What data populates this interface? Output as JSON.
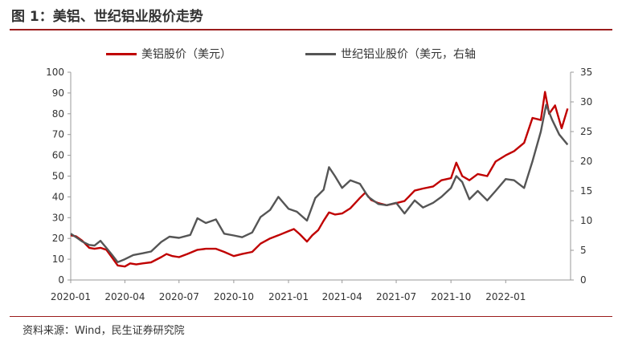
{
  "figure": {
    "title": "图 1：美铝、世纪铝业股价走势",
    "source": "资料来源：Wind，民生证券研究院"
  },
  "colors": {
    "accent": "#9b1c1c",
    "series_a": "#c00000",
    "series_b": "#555555"
  },
  "chart_data": {
    "type": "line",
    "title": "",
    "xlabel": "",
    "ylabel": "",
    "y2label": "",
    "ylim": [
      0,
      100
    ],
    "y2lim": [
      0,
      35
    ],
    "x_ticks": [
      "2020-01",
      "2020-04",
      "2020-07",
      "2020-10",
      "2021-01",
      "2021-04",
      "2021-07",
      "2021-10",
      "2022-01"
    ],
    "y_ticks": [
      0,
      10,
      20,
      30,
      40,
      50,
      60,
      70,
      80,
      90,
      100
    ],
    "y2_ticks": [
      0,
      5,
      10,
      15,
      20,
      25,
      30,
      35
    ],
    "x_range": [
      "2020-01-01",
      "2022-04-20"
    ],
    "grid": false,
    "legend_position": "top",
    "series": [
      {
        "name": "美铝股价（美元）",
        "axis": "left",
        "color": "#c00000",
        "points": [
          [
            "2020-01-01",
            21.5
          ],
          [
            "2020-01-10",
            21
          ],
          [
            "2020-01-20",
            19
          ],
          [
            "2020-02-01",
            15.5
          ],
          [
            "2020-02-10",
            15
          ],
          [
            "2020-02-20",
            15.5
          ],
          [
            "2020-03-01",
            14.5
          ],
          [
            "2020-03-10",
            11
          ],
          [
            "2020-03-20",
            7
          ],
          [
            "2020-04-01",
            6.5
          ],
          [
            "2020-04-10",
            8
          ],
          [
            "2020-04-20",
            7.5
          ],
          [
            "2020-05-01",
            8
          ],
          [
            "2020-05-15",
            8.5
          ],
          [
            "2020-06-01",
            11
          ],
          [
            "2020-06-10",
            12.5
          ],
          [
            "2020-06-20",
            11.5
          ],
          [
            "2020-07-01",
            11
          ],
          [
            "2020-07-15",
            12.5
          ],
          [
            "2020-08-01",
            14.5
          ],
          [
            "2020-08-15",
            15
          ],
          [
            "2020-09-01",
            15
          ],
          [
            "2020-09-15",
            13.5
          ],
          [
            "2020-10-01",
            11.5
          ],
          [
            "2020-10-15",
            12.5
          ],
          [
            "2020-11-01",
            13.5
          ],
          [
            "2020-11-15",
            17.5
          ],
          [
            "2020-12-01",
            20
          ],
          [
            "2020-12-15",
            21.5
          ],
          [
            "2021-01-01",
            23.5
          ],
          [
            "2021-01-10",
            24.5
          ],
          [
            "2021-01-20",
            22
          ],
          [
            "2021-02-01",
            18.5
          ],
          [
            "2021-02-10",
            21.5
          ],
          [
            "2021-02-20",
            24
          ],
          [
            "2021-03-01",
            28.5
          ],
          [
            "2021-03-10",
            32.5
          ],
          [
            "2021-03-20",
            31.5
          ],
          [
            "2021-04-01",
            32
          ],
          [
            "2021-04-15",
            34.5
          ],
          [
            "2021-05-01",
            39.5
          ],
          [
            "2021-05-10",
            42
          ],
          [
            "2021-05-20",
            38.5
          ],
          [
            "2021-06-01",
            37
          ],
          [
            "2021-06-15",
            36
          ],
          [
            "2021-07-01",
            37
          ],
          [
            "2021-07-15",
            38
          ],
          [
            "2021-08-01",
            43
          ],
          [
            "2021-08-15",
            44
          ],
          [
            "2021-09-01",
            45
          ],
          [
            "2021-09-15",
            48
          ],
          [
            "2021-10-01",
            49
          ],
          [
            "2021-10-10",
            56.5
          ],
          [
            "2021-10-20",
            50
          ],
          [
            "2021-11-01",
            48
          ],
          [
            "2021-11-15",
            51
          ],
          [
            "2021-12-01",
            50
          ],
          [
            "2021-12-15",
            57
          ],
          [
            "2022-01-01",
            60
          ],
          [
            "2022-01-15",
            62
          ],
          [
            "2022-02-01",
            66
          ],
          [
            "2022-02-15",
            78
          ],
          [
            "2022-03-01",
            77
          ],
          [
            "2022-03-08",
            90.5
          ],
          [
            "2022-03-15",
            80
          ],
          [
            "2022-03-25",
            84
          ],
          [
            "2022-04-05",
            73
          ],
          [
            "2022-04-15",
            82.5
          ]
        ]
      },
      {
        "name": "世纪铝业股价（美元，右轴",
        "axis": "right",
        "color": "#555555",
        "points": [
          [
            "2020-01-01",
            7.8
          ],
          [
            "2020-01-10",
            7.2
          ],
          [
            "2020-01-20",
            6.5
          ],
          [
            "2020-02-01",
            5.9
          ],
          [
            "2020-02-10",
            5.8
          ],
          [
            "2020-02-20",
            6.6
          ],
          [
            "2020-03-01",
            5.4
          ],
          [
            "2020-03-10",
            4.3
          ],
          [
            "2020-03-20",
            3.0
          ],
          [
            "2020-04-01",
            3.5
          ],
          [
            "2020-04-15",
            4.2
          ],
          [
            "2020-05-01",
            4.5
          ],
          [
            "2020-05-15",
            4.8
          ],
          [
            "2020-06-01",
            6.4
          ],
          [
            "2020-06-15",
            7.3
          ],
          [
            "2020-07-01",
            7.1
          ],
          [
            "2020-07-20",
            7.6
          ],
          [
            "2020-08-01",
            10.4
          ],
          [
            "2020-08-15",
            9.6
          ],
          [
            "2020-09-01",
            10.2
          ],
          [
            "2020-09-15",
            7.8
          ],
          [
            "2020-10-01",
            7.5
          ],
          [
            "2020-10-15",
            7.2
          ],
          [
            "2020-11-01",
            8.0
          ],
          [
            "2020-11-15",
            10.6
          ],
          [
            "2020-12-01",
            11.8
          ],
          [
            "2020-12-15",
            14.0
          ],
          [
            "2021-01-01",
            12.0
          ],
          [
            "2021-01-15",
            11.5
          ],
          [
            "2021-02-01",
            10.0
          ],
          [
            "2021-02-15",
            13.8
          ],
          [
            "2021-03-01",
            15.2
          ],
          [
            "2021-03-10",
            19.0
          ],
          [
            "2021-03-20",
            17.5
          ],
          [
            "2021-04-01",
            15.5
          ],
          [
            "2021-04-15",
            16.8
          ],
          [
            "2021-05-01",
            16.2
          ],
          [
            "2021-05-15",
            14.0
          ],
          [
            "2021-06-01",
            12.8
          ],
          [
            "2021-06-15",
            12.6
          ],
          [
            "2021-07-01",
            13.0
          ],
          [
            "2021-07-15",
            11.2
          ],
          [
            "2021-08-01",
            13.4
          ],
          [
            "2021-08-15",
            12.2
          ],
          [
            "2021-09-01",
            13.0
          ],
          [
            "2021-09-15",
            14.0
          ],
          [
            "2021-10-01",
            15.5
          ],
          [
            "2021-10-10",
            17.5
          ],
          [
            "2021-10-20",
            16.5
          ],
          [
            "2021-11-01",
            13.6
          ],
          [
            "2021-11-15",
            15.0
          ],
          [
            "2021-12-01",
            13.4
          ],
          [
            "2021-12-15",
            15.0
          ],
          [
            "2022-01-01",
            17.0
          ],
          [
            "2022-01-15",
            16.8
          ],
          [
            "2022-02-01",
            15.5
          ],
          [
            "2022-02-15",
            20.0
          ],
          [
            "2022-03-01",
            25.0
          ],
          [
            "2022-03-10",
            29.5
          ],
          [
            "2022-03-20",
            27.0
          ],
          [
            "2022-04-01",
            24.5
          ],
          [
            "2022-04-15",
            22.8
          ]
        ]
      }
    ]
  }
}
